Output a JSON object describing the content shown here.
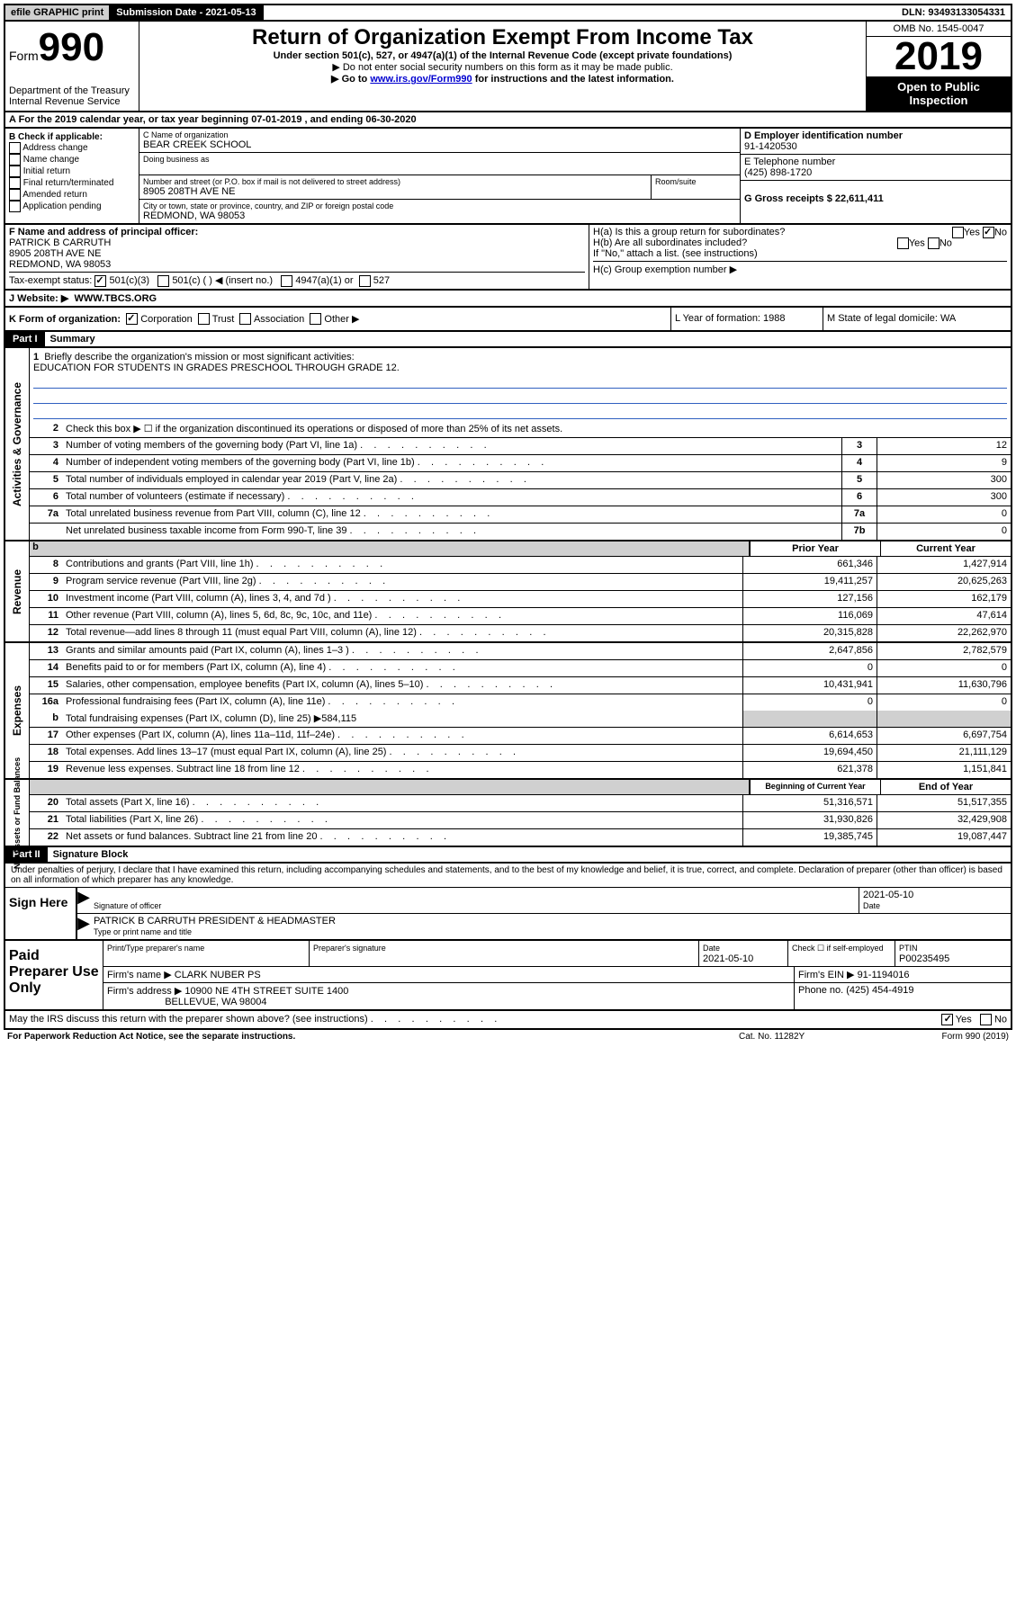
{
  "topbar": {
    "efile": "efile GRAPHIC print",
    "subdate": "Submission Date - 2021-05-13",
    "dln": "DLN: 93493133054331"
  },
  "header": {
    "form_prefix": "Form",
    "form_num": "990",
    "dept": "Department of the Treasury",
    "irs": "Internal Revenue Service",
    "title": "Return of Organization Exempt From Income Tax",
    "sub1": "Under section 501(c), 527, or 4947(a)(1) of the Internal Revenue Code (except private foundations)",
    "sub2": "▶ Do not enter social security numbers on this form as it may be made public.",
    "sub3_pre": "▶ Go to ",
    "sub3_link": "www.irs.gov/Form990",
    "sub3_post": " for instructions and the latest information.",
    "omb": "OMB No. 1545-0047",
    "year": "2019",
    "openpub": "Open to Public Inspection"
  },
  "rowA": "A   For the 2019 calendar year, or tax year beginning 07-01-2019    , and ending 06-30-2020",
  "colB": {
    "title": "B Check if applicable:",
    "opts": [
      "Address change",
      "Name change",
      "Initial return",
      "Final return/terminated",
      "Amended return",
      "Application pending"
    ]
  },
  "colC": {
    "name_lbl": "C Name of organization",
    "name": "BEAR CREEK SCHOOL",
    "dba_lbl": "Doing business as",
    "addr_lbl": "Number and street (or P.O. box if mail is not delivered to street address)",
    "room_lbl": "Room/suite",
    "addr": "8905 208TH AVE NE",
    "city_lbl": "City or town, state or province, country, and ZIP or foreign postal code",
    "city": "REDMOND, WA  98053"
  },
  "colDE": {
    "d_lbl": "D Employer identification number",
    "ein": "91-1420530",
    "e_lbl": "E Telephone number",
    "phone": "(425) 898-1720",
    "g_lbl": "G Gross receipts $ 22,611,411"
  },
  "rowF": {
    "f_lbl": "F  Name and address of principal officer:",
    "name": "PATRICK B CARRUTH",
    "addr1": "8905 208TH AVE NE",
    "addr2": "REDMOND, WA  98053",
    "tax_lbl": "Tax-exempt status:",
    "c3": "501(c)(3)",
    "cins": "501(c) (  ) ◀ (insert no.)",
    "c4947": "4947(a)(1) or",
    "c527": "527",
    "ha": "H(a)  Is this a group return for subordinates?",
    "hb": "H(b)  Are all subordinates included?",
    "hb2": "If \"No,\" attach a list. (see instructions)",
    "hc": "H(c)  Group exemption number ▶",
    "yes": "Yes",
    "no": "No"
  },
  "website": {
    "lbl": "J   Website: ▶",
    "val": "WWW.TBCS.ORG"
  },
  "rowK": {
    "k": "K Form of organization:",
    "corp": "Corporation",
    "trust": "Trust",
    "assoc": "Association",
    "other": "Other ▶",
    "l": "L Year of formation: 1988",
    "m": "M State of legal domicile: WA"
  },
  "part1": {
    "tab": "Part I",
    "ttl": "Summary"
  },
  "sec_gov": {
    "label": "Activities & Governance",
    "l1": "Briefly describe the organization's mission or most significant activities:",
    "l1v": "EDUCATION FOR STUDENTS IN GRADES PRESCHOOL THROUGH GRADE 12.",
    "l2": "Check this box ▶ ☐  if the organization discontinued its operations or disposed of more than 25% of its net assets.",
    "l3": "Number of voting members of the governing body (Part VI, line 1a)",
    "l4": "Number of independent voting members of the governing body (Part VI, line 1b)",
    "l5": "Total number of individuals employed in calendar year 2019 (Part V, line 2a)",
    "l6": "Total number of volunteers (estimate if necessary)",
    "l7a": "Total unrelated business revenue from Part VIII, column (C), line 12",
    "l7b": "Net unrelated business taxable income from Form 990-T, line 39",
    "v3": "12",
    "v4": "9",
    "v5": "300",
    "v6": "300",
    "v7a": "0",
    "v7b": "0"
  },
  "sec_rev": {
    "label": "Revenue",
    "hdrB": "b",
    "py": "Prior Year",
    "cy": "Current Year",
    "rows": [
      {
        "n": "8",
        "t": "Contributions and grants (Part VIII, line 1h)",
        "p": "661,346",
        "c": "1,427,914"
      },
      {
        "n": "9",
        "t": "Program service revenue (Part VIII, line 2g)",
        "p": "19,411,257",
        "c": "20,625,263"
      },
      {
        "n": "10",
        "t": "Investment income (Part VIII, column (A), lines 3, 4, and 7d )",
        "p": "127,156",
        "c": "162,179"
      },
      {
        "n": "11",
        "t": "Other revenue (Part VIII, column (A), lines 5, 6d, 8c, 9c, 10c, and 11e)",
        "p": "116,069",
        "c": "47,614"
      },
      {
        "n": "12",
        "t": "Total revenue—add lines 8 through 11 (must equal Part VIII, column (A), line 12)",
        "p": "20,315,828",
        "c": "22,262,970"
      }
    ]
  },
  "sec_exp": {
    "label": "Expenses",
    "rows": [
      {
        "n": "13",
        "t": "Grants and similar amounts paid (Part IX, column (A), lines 1–3 )",
        "p": "2,647,856",
        "c": "2,782,579"
      },
      {
        "n": "14",
        "t": "Benefits paid to or for members (Part IX, column (A), line 4)",
        "p": "0",
        "c": "0"
      },
      {
        "n": "15",
        "t": "Salaries, other compensation, employee benefits (Part IX, column (A), lines 5–10)",
        "p": "10,431,941",
        "c": "11,630,796"
      },
      {
        "n": "16a",
        "t": "Professional fundraising fees (Part IX, column (A), line 11e)",
        "p": "0",
        "c": "0"
      }
    ],
    "l16b": "Total fundraising expenses (Part IX, column (D), line 25) ▶584,115",
    "rows2": [
      {
        "n": "17",
        "t": "Other expenses (Part IX, column (A), lines 11a–11d, 11f–24e)",
        "p": "6,614,653",
        "c": "6,697,754"
      },
      {
        "n": "18",
        "t": "Total expenses. Add lines 13–17 (must equal Part IX, column (A), line 25)",
        "p": "19,694,450",
        "c": "21,111,129"
      },
      {
        "n": "19",
        "t": "Revenue less expenses. Subtract line 18 from line 12",
        "p": "621,378",
        "c": "1,151,841"
      }
    ]
  },
  "sec_net": {
    "label": "Net Assets or Fund Balances",
    "py": "Beginning of Current Year",
    "cy": "End of Year",
    "rows": [
      {
        "n": "20",
        "t": "Total assets (Part X, line 16)",
        "p": "51,316,571",
        "c": "51,517,355"
      },
      {
        "n": "21",
        "t": "Total liabilities (Part X, line 26)",
        "p": "31,930,826",
        "c": "32,429,908"
      },
      {
        "n": "22",
        "t": "Net assets or fund balances. Subtract line 21 from line 20",
        "p": "19,385,745",
        "c": "19,087,447"
      }
    ]
  },
  "part2": {
    "tab": "Part II",
    "ttl": "Signature Block"
  },
  "sig": {
    "intro": "Under penalties of perjury, I declare that I have examined this return, including accompanying schedules and statements, and to the best of my knowledge and belief, it is true, correct, and complete. Declaration of preparer (other than officer) is based on all information of which preparer has any knowledge.",
    "here": "Sign Here",
    "sig_lbl": "Signature of officer",
    "date": "2021-05-10",
    "date_lbl": "Date",
    "name": "PATRICK B CARRUTH  PRESIDENT & HEADMASTER",
    "name_lbl": "Type or print name and title"
  },
  "paid": {
    "lab": "Paid Preparer Use Only",
    "h1": "Print/Type preparer's name",
    "h2": "Preparer's signature",
    "h3": "Date",
    "h4": "Check ☐ if self-employed",
    "h5": "PTIN",
    "date": "2021-05-10",
    "ptin": "P00235495",
    "firm_lbl": "Firm's name   ▶",
    "firm": "CLARK NUBER PS",
    "ein_lbl": "Firm's EIN ▶",
    "ein": "91-1194016",
    "addr_lbl": "Firm's address ▶",
    "addr1": "10900 NE 4TH STREET SUITE 1400",
    "addr2": "BELLEVUE, WA  98004",
    "ph_lbl": "Phone no.",
    "ph": "(425) 454-4919"
  },
  "footer": {
    "q": "May the IRS discuss this return with the preparer shown above? (see instructions)",
    "yes": "Yes",
    "no": "No"
  },
  "paperwork": {
    "l": "For Paperwork Reduction Act Notice, see the separate instructions.",
    "m": "Cat. No. 11282Y",
    "r": "Form 990 (2019)"
  }
}
